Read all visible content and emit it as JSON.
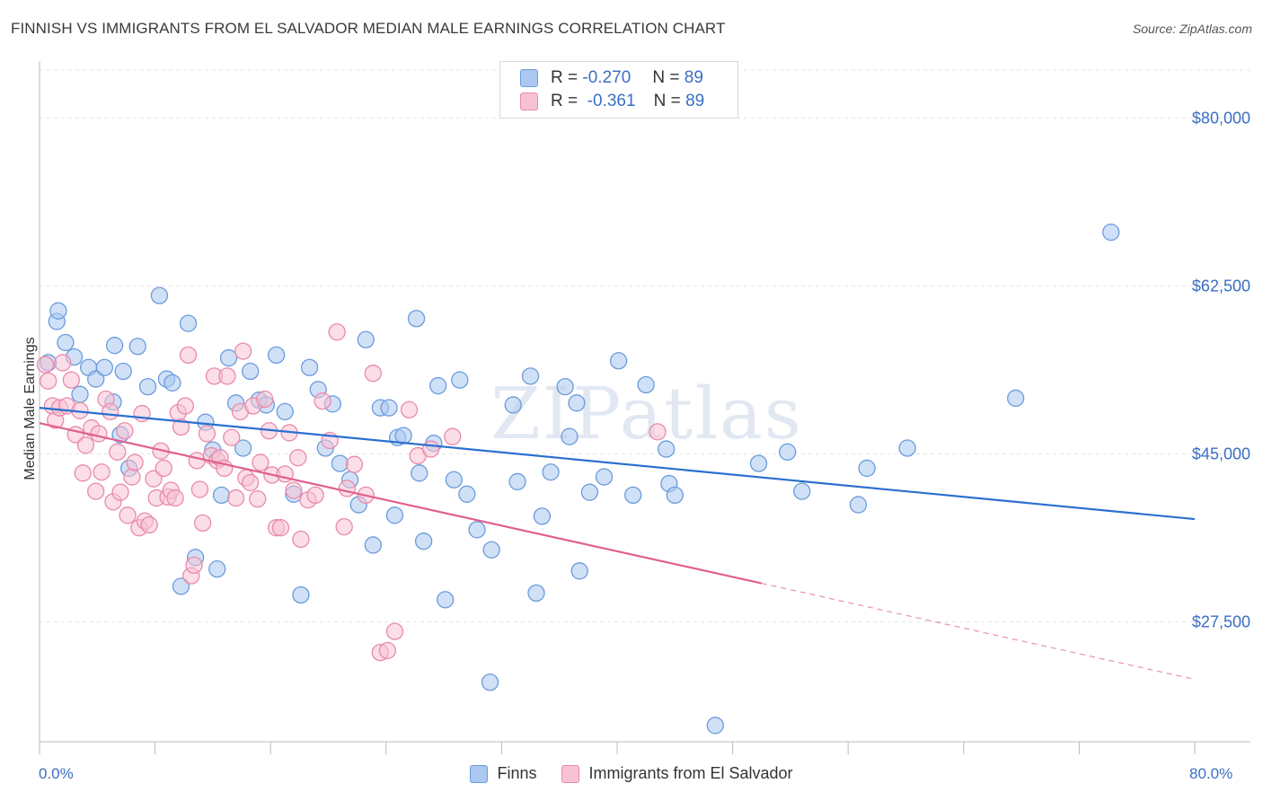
{
  "title": "FINNISH VS IMMIGRANTS FROM EL SALVADOR MEDIAN MALE EARNINGS CORRELATION CHART",
  "source": "Source: ZipAtlas.com",
  "watermark": "ZIPatlas",
  "colors": {
    "finns_fill": "#aac8f0",
    "finns_stroke": "#6b9bdc",
    "finns_line": "#2a6fd0",
    "salv_fill": "#f7c3d3",
    "salv_stroke": "#e98aaa",
    "salv_line": "#e06090",
    "tick_label": "#3a6fc4",
    "grid": "#e3e3e3"
  },
  "legend_top": {
    "r_label": "R =",
    "n_label": "N =",
    "finns": {
      "r": "-0.270",
      "n": "89"
    },
    "salv": {
      "r": "-0.361",
      "n": "89"
    }
  },
  "legend_bottom": {
    "finns": "Finns",
    "salv": "Immigrants from El Salvador"
  },
  "chart_data": {
    "type": "scatter",
    "title": "FINNISH VS IMMIGRANTS FROM EL SALVADOR MEDIAN MALE EARNINGS CORRELATION CHART",
    "xlabel": "",
    "ylabel": "Median Male Earnings",
    "xlim": [
      0,
      80
    ],
    "ylim": [
      15000,
      85000
    ],
    "x_tick_labels": [
      "0.0%",
      "80.0%"
    ],
    "y_ticks": [
      {
        "value": 80000,
        "label": "$80,000"
      },
      {
        "value": 62500,
        "label": "$62,500"
      },
      {
        "value": 45000,
        "label": "$45,000"
      },
      {
        "value": 27500,
        "label": "$27,500"
      }
    ],
    "grid": true,
    "legend_position": "top-center",
    "series": [
      {
        "name": "Finns",
        "r": -0.27,
        "n": 89,
        "trend": {
          "x1": 0,
          "y1": 49800,
          "x2": 80,
          "y2": 38200,
          "dashed_from": null
        },
        "points": [
          [
            0.6,
            54500
          ],
          [
            1.2,
            58800
          ],
          [
            1.3,
            59900
          ],
          [
            1.8,
            56600
          ],
          [
            2.4,
            55100
          ],
          [
            2.8,
            51200
          ],
          [
            3.4,
            54000
          ],
          [
            3.9,
            52800
          ],
          [
            4.5,
            54000
          ],
          [
            5.1,
            50400
          ],
          [
            5.2,
            56300
          ],
          [
            5.6,
            47000
          ],
          [
            5.8,
            53600
          ],
          [
            6.2,
            43500
          ],
          [
            6.8,
            56200
          ],
          [
            7.5,
            52000
          ],
          [
            8.3,
            61500
          ],
          [
            8.8,
            52800
          ],
          [
            9.2,
            52400
          ],
          [
            9.8,
            31200
          ],
          [
            10.3,
            58600
          ],
          [
            10.8,
            34200
          ],
          [
            11.5,
            48300
          ],
          [
            12.0,
            45400
          ],
          [
            12.3,
            33000
          ],
          [
            12.6,
            40700
          ],
          [
            13.1,
            55000
          ],
          [
            13.6,
            50300
          ],
          [
            14.1,
            45600
          ],
          [
            14.6,
            53600
          ],
          [
            15.2,
            50600
          ],
          [
            15.7,
            50100
          ],
          [
            16.4,
            55300
          ],
          [
            17.0,
            49400
          ],
          [
            17.6,
            40800
          ],
          [
            18.1,
            30300
          ],
          [
            18.7,
            54000
          ],
          [
            19.3,
            51700
          ],
          [
            19.8,
            45600
          ],
          [
            20.3,
            50200
          ],
          [
            20.8,
            44000
          ],
          [
            21.5,
            42300
          ],
          [
            22.1,
            39700
          ],
          [
            22.6,
            56900
          ],
          [
            23.1,
            35500
          ],
          [
            23.6,
            49800
          ],
          [
            24.2,
            49800
          ],
          [
            24.6,
            38600
          ],
          [
            24.8,
            46700
          ],
          [
            25.2,
            46900
          ],
          [
            26.1,
            59100
          ],
          [
            26.3,
            43000
          ],
          [
            26.6,
            35900
          ],
          [
            27.3,
            46100
          ],
          [
            27.6,
            52100
          ],
          [
            28.1,
            29800
          ],
          [
            28.7,
            42300
          ],
          [
            29.1,
            52700
          ],
          [
            29.6,
            40800
          ],
          [
            30.3,
            37100
          ],
          [
            31.2,
            21200
          ],
          [
            31.3,
            35000
          ],
          [
            32.8,
            50100
          ],
          [
            33.1,
            42100
          ],
          [
            34.0,
            53100
          ],
          [
            34.4,
            30500
          ],
          [
            34.8,
            38500
          ],
          [
            35.4,
            43100
          ],
          [
            36.4,
            52000
          ],
          [
            36.7,
            46800
          ],
          [
            37.2,
            50300
          ],
          [
            37.4,
            32800
          ],
          [
            38.1,
            41000
          ],
          [
            39.1,
            42600
          ],
          [
            40.1,
            54700
          ],
          [
            41.1,
            40700
          ],
          [
            42.0,
            52200
          ],
          [
            43.4,
            45500
          ],
          [
            43.6,
            41900
          ],
          [
            44.0,
            40700
          ],
          [
            46.8,
            16700
          ],
          [
            49.8,
            44000
          ],
          [
            51.8,
            45200
          ],
          [
            52.8,
            41100
          ],
          [
            56.7,
            39700
          ],
          [
            57.3,
            43500
          ],
          [
            60.1,
            45600
          ],
          [
            67.6,
            50800
          ],
          [
            74.2,
            68100
          ]
        ]
      },
      {
        "name": "Immigrants from El Salvador",
        "r": -0.361,
        "n": 89,
        "trend": {
          "x1": 0,
          "y1": 48200,
          "x2": 80,
          "y2": 21500,
          "dashed_from": 50
        },
        "points": [
          [
            0.6,
            52600
          ],
          [
            0.9,
            50000
          ],
          [
            1.1,
            48500
          ],
          [
            1.4,
            49800
          ],
          [
            1.6,
            54500
          ],
          [
            1.9,
            50000
          ],
          [
            2.2,
            52700
          ],
          [
            2.5,
            47000
          ],
          [
            2.8,
            49500
          ],
          [
            3.0,
            43000
          ],
          [
            3.2,
            45900
          ],
          [
            3.6,
            47700
          ],
          [
            3.9,
            41100
          ],
          [
            4.1,
            47100
          ],
          [
            4.3,
            43100
          ],
          [
            4.6,
            50700
          ],
          [
            4.9,
            49400
          ],
          [
            5.1,
            40000
          ],
          [
            5.4,
            45200
          ],
          [
            5.6,
            41000
          ],
          [
            5.9,
            47400
          ],
          [
            6.1,
            38600
          ],
          [
            6.4,
            42600
          ],
          [
            6.6,
            44100
          ],
          [
            6.9,
            37300
          ],
          [
            7.1,
            49200
          ],
          [
            7.3,
            38000
          ],
          [
            7.6,
            37600
          ],
          [
            7.9,
            42400
          ],
          [
            8.1,
            40400
          ],
          [
            8.4,
            45300
          ],
          [
            8.6,
            43500
          ],
          [
            8.9,
            40500
          ],
          [
            9.1,
            41200
          ],
          [
            9.4,
            40400
          ],
          [
            9.6,
            49300
          ],
          [
            9.8,
            47800
          ],
          [
            10.1,
            50000
          ],
          [
            10.3,
            55300
          ],
          [
            10.5,
            32300
          ],
          [
            10.7,
            33400
          ],
          [
            10.9,
            44300
          ],
          [
            11.1,
            41300
          ],
          [
            11.3,
            37800
          ],
          [
            11.6,
            47100
          ],
          [
            11.9,
            44800
          ],
          [
            12.1,
            53100
          ],
          [
            12.3,
            44300
          ],
          [
            12.5,
            44600
          ],
          [
            12.8,
            43500
          ],
          [
            13.0,
            53100
          ],
          [
            13.3,
            46700
          ],
          [
            13.6,
            40400
          ],
          [
            13.9,
            49400
          ],
          [
            14.1,
            55700
          ],
          [
            14.3,
            42500
          ],
          [
            14.6,
            42000
          ],
          [
            14.8,
            50000
          ],
          [
            15.1,
            40300
          ],
          [
            15.3,
            44100
          ],
          [
            15.6,
            50700
          ],
          [
            15.9,
            47400
          ],
          [
            16.1,
            42800
          ],
          [
            16.4,
            37300
          ],
          [
            16.7,
            37300
          ],
          [
            17.0,
            42900
          ],
          [
            17.3,
            47200
          ],
          [
            17.6,
            41200
          ],
          [
            17.9,
            44600
          ],
          [
            18.1,
            36100
          ],
          [
            18.6,
            40200
          ],
          [
            19.1,
            40700
          ],
          [
            19.6,
            50500
          ],
          [
            20.1,
            46400
          ],
          [
            20.6,
            57700
          ],
          [
            21.1,
            37400
          ],
          [
            21.3,
            41400
          ],
          [
            21.8,
            43900
          ],
          [
            22.6,
            40700
          ],
          [
            23.1,
            53400
          ],
          [
            23.6,
            24300
          ],
          [
            24.1,
            24500
          ],
          [
            24.6,
            26500
          ],
          [
            25.6,
            49600
          ],
          [
            26.2,
            44800
          ],
          [
            27.1,
            45500
          ],
          [
            28.6,
            46800
          ],
          [
            42.8,
            47300
          ],
          [
            0.4,
            54300
          ]
        ]
      }
    ]
  }
}
